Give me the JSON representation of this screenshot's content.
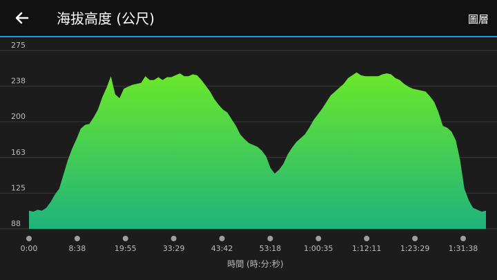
{
  "header": {
    "back_icon": "arrow-left-icon",
    "title": "海拔高度 (公尺)",
    "layers_label": "圖層"
  },
  "colors": {
    "header_bg": "#111111",
    "accent": "#1e9be6",
    "fill_top": "#6be82b",
    "fill_bottom": "#1fb37c"
  },
  "chart_data": {
    "type": "area",
    "title": "",
    "xlabel": "時間 (時:分:秒)",
    "ylabel": "",
    "ylim": [
      88,
      275
    ],
    "yticks": [
      "275",
      "238",
      "200",
      "163",
      "125",
      "88"
    ],
    "xticks": [
      "0:00",
      "8:38",
      "19:55",
      "33:29",
      "43:42",
      "53:18",
      "1:00:35",
      "1:12:11",
      "1:23:29",
      "1:31:38"
    ],
    "grid": true,
    "series": [
      {
        "values": [
          107,
          106,
          108,
          107,
          110,
          116,
          124,
          130,
          145,
          160,
          172,
          182,
          193,
          197,
          198,
          205,
          213,
          226,
          236,
          248,
          229,
          225,
          235,
          237,
          239,
          240,
          241,
          248,
          244,
          244,
          247,
          244,
          247,
          247,
          249,
          251,
          248,
          248,
          250,
          249,
          244,
          238,
          232,
          224,
          218,
          213,
          210,
          203,
          196,
          187,
          182,
          178,
          176,
          174,
          170,
          164,
          152,
          146,
          150,
          156,
          166,
          173,
          179,
          183,
          187,
          194,
          202,
          208,
          214,
          221,
          228,
          232,
          236,
          240,
          246,
          249,
          252,
          249,
          248,
          248,
          248,
          248,
          250,
          251,
          250,
          246,
          244,
          240,
          237,
          235,
          234,
          233,
          232,
          227,
          221,
          210,
          196,
          194,
          190,
          181,
          160,
          130,
          118,
          110,
          108,
          106,
          107
        ]
      }
    ]
  }
}
